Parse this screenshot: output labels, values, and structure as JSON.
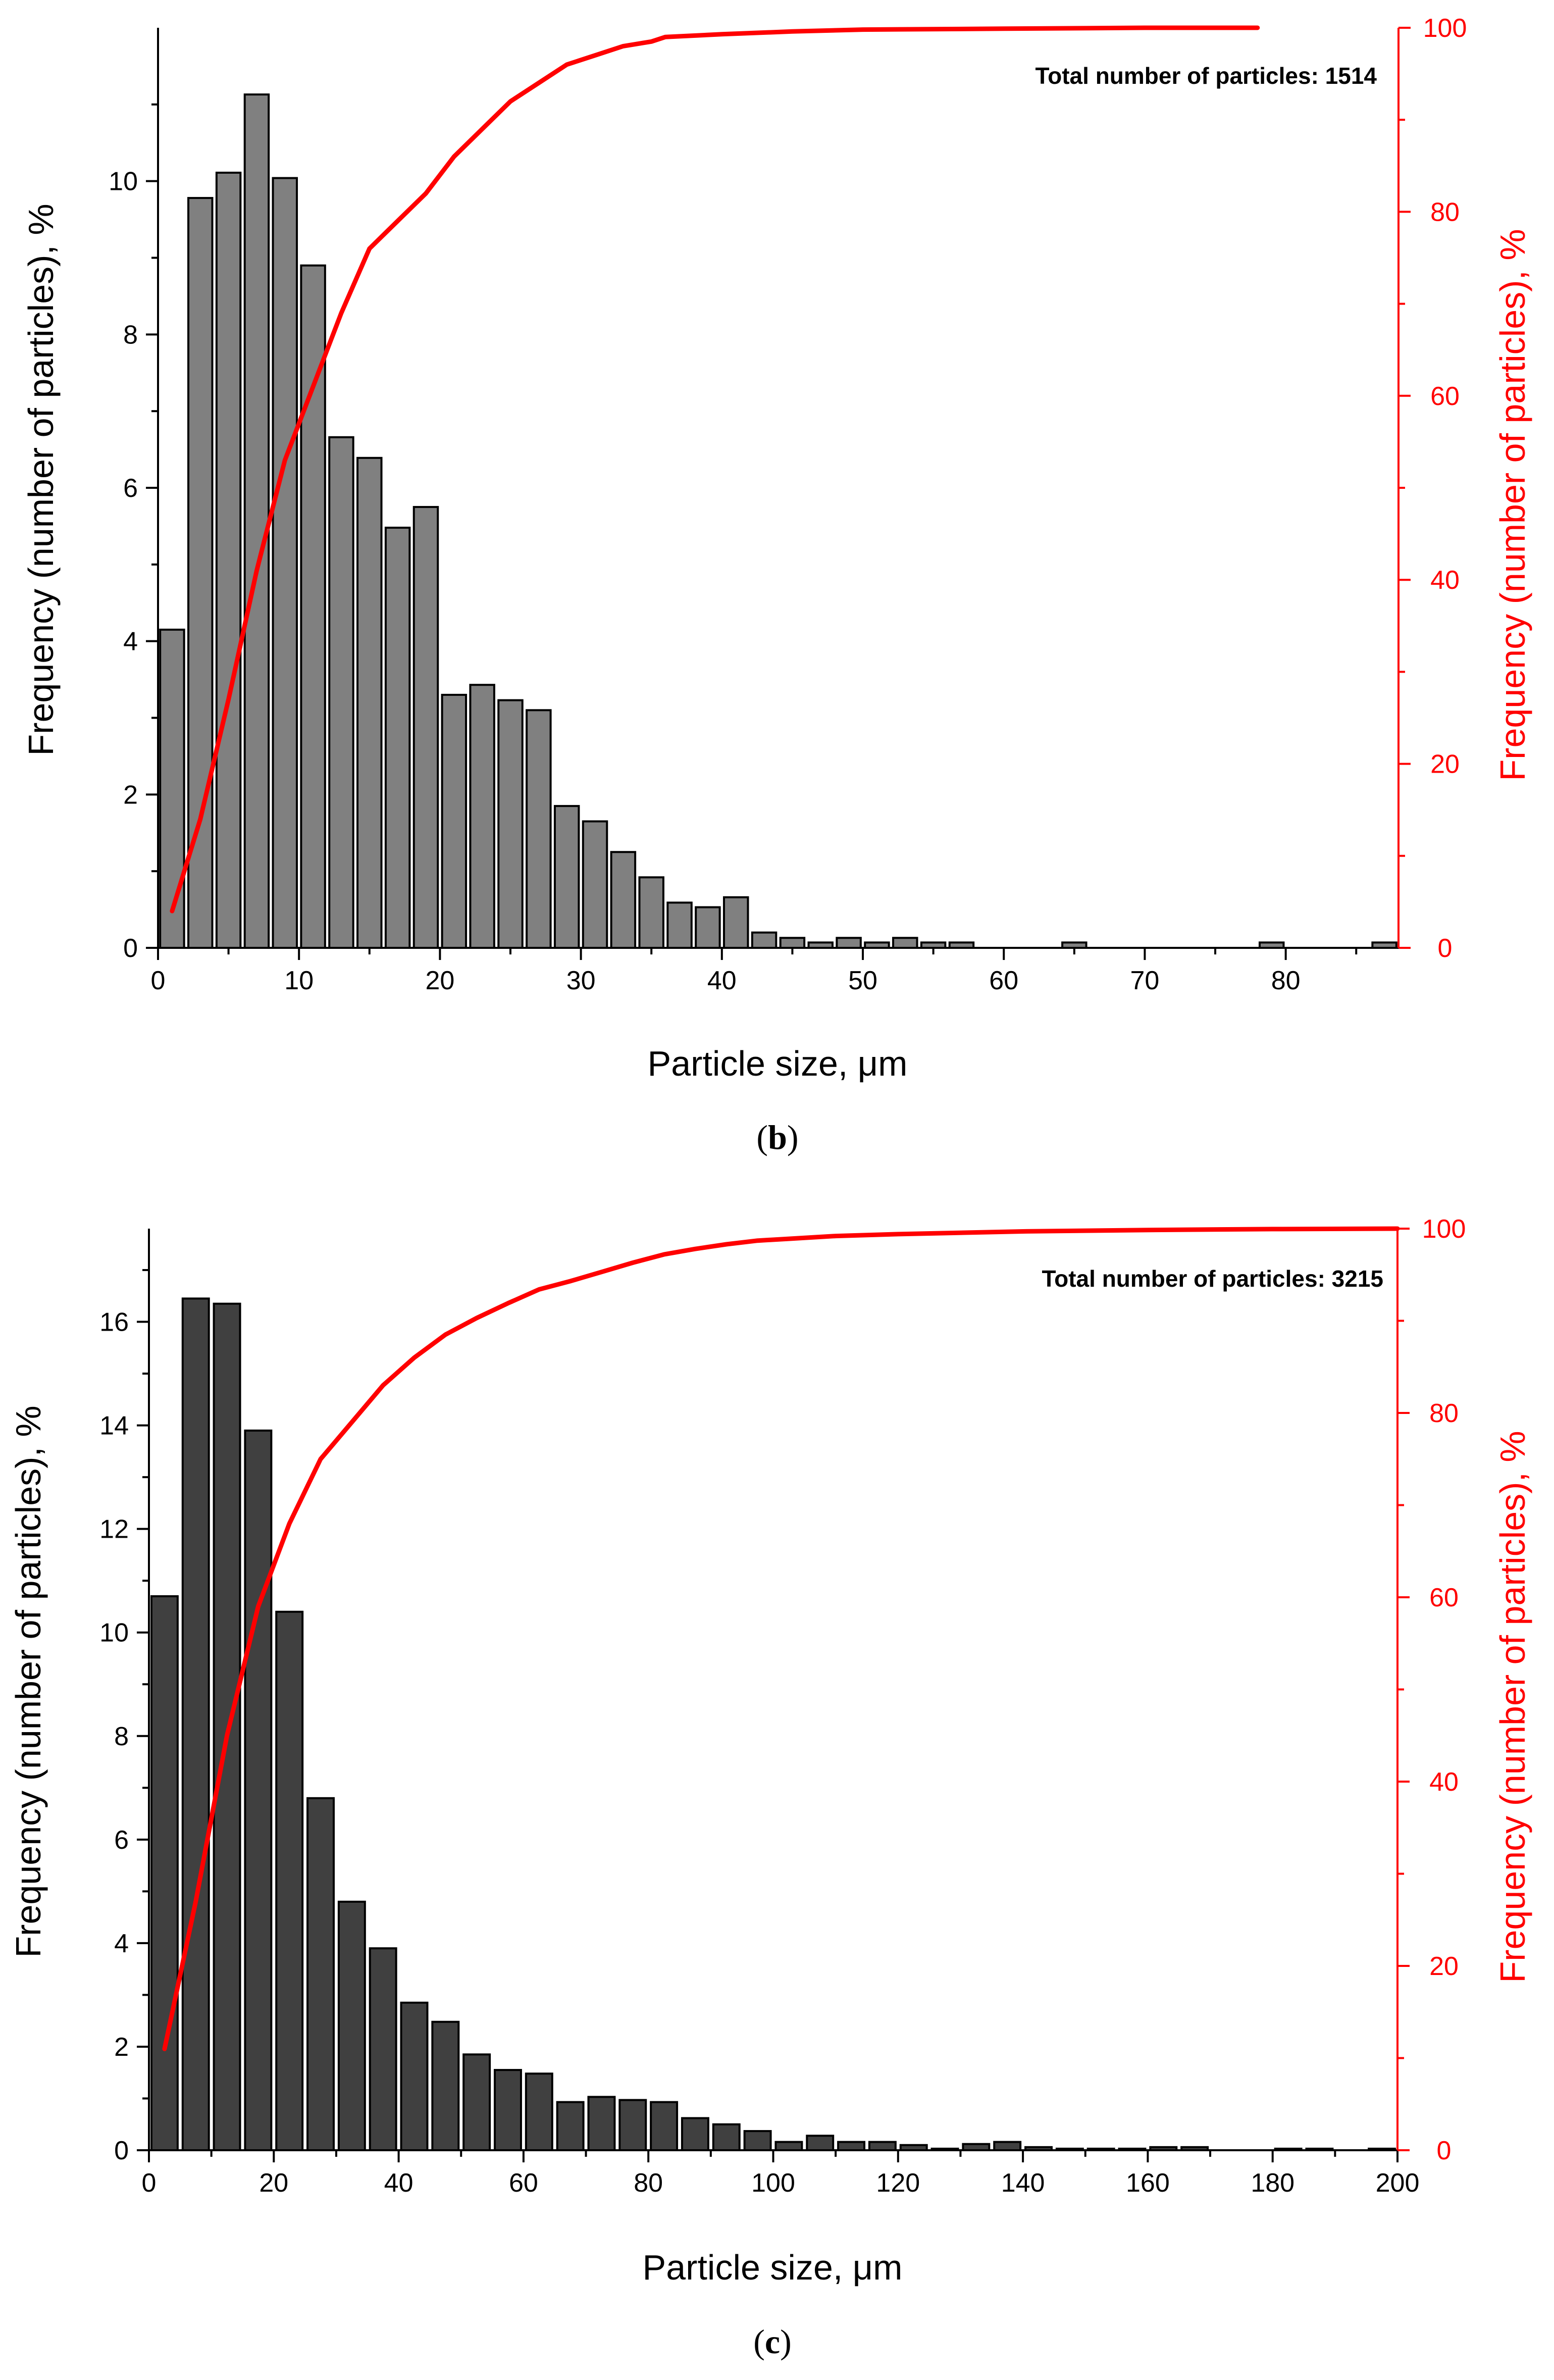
{
  "colors": {
    "cumulative": "#ff0000",
    "axis": "#000000",
    "bar_stroke": "#000000"
  },
  "chart_data": [
    {
      "type": "bar",
      "panel_label": "b",
      "annotation": "Total number of particles: 1514",
      "xlabel": "Particle size, μm",
      "ylabel": "Frequency (number of particles), %",
      "y2label": "Frequency (number of particles), %",
      "xlim": [
        0,
        88
      ],
      "ylim": [
        0,
        12
      ],
      "y2lim": [
        0,
        100
      ],
      "xticks": [
        0,
        10,
        20,
        30,
        40,
        50,
        60,
        70,
        80
      ],
      "yticks": [
        0,
        2,
        4,
        6,
        8,
        10
      ],
      "y2ticks": [
        0,
        20,
        40,
        60,
        80,
        100
      ],
      "bar_color": "#808080",
      "bar_width": 1.7,
      "series": [
        {
          "name": "Frequency",
          "axis": "left",
          "x": [
            1,
            3,
            5,
            7,
            9,
            11,
            13,
            15,
            17,
            19,
            21,
            23,
            25,
            27,
            29,
            31,
            33,
            35,
            37,
            39,
            41,
            43,
            45,
            47,
            49,
            51,
            53,
            55,
            57,
            59,
            61,
            63,
            65,
            67,
            69,
            71,
            73,
            75,
            77,
            79,
            81,
            83,
            85,
            87
          ],
          "values": [
            4.15,
            9.78,
            10.11,
            11.13,
            10.04,
            8.9,
            6.66,
            6.39,
            5.48,
            5.75,
            3.3,
            3.43,
            3.23,
            3.1,
            1.85,
            1.65,
            1.25,
            0.92,
            0.59,
            0.53,
            0.66,
            0.2,
            0.13,
            0.07,
            0.13,
            0.07,
            0.13,
            0.07,
            0.07,
            0.0,
            0.0,
            0.0,
            0.07,
            0.0,
            0.0,
            0.0,
            0.0,
            0.0,
            0.0,
            0.07,
            0.0,
            0.0,
            0.0,
            0.07
          ]
        },
        {
          "name": "Cumulative frequency",
          "axis": "right",
          "type": "line",
          "x": [
            1,
            3,
            5,
            7,
            9,
            11,
            13,
            15,
            17,
            19,
            21,
            23,
            25,
            27,
            29,
            31,
            33,
            35,
            36,
            40,
            45,
            50,
            60,
            70,
            78
          ],
          "values": [
            4,
            14,
            27,
            41,
            53,
            61,
            69,
            76,
            79,
            82,
            86,
            89,
            92,
            94,
            96,
            97,
            98,
            98.5,
            99,
            99.3,
            99.6,
            99.8,
            99.9,
            100,
            100
          ]
        }
      ]
    },
    {
      "type": "bar",
      "panel_label": "c",
      "annotation": "Total number of particles: 3215",
      "xlabel": "Particle size, μm",
      "ylabel": "Frequency (number of particles), %",
      "y2label": "Frequency (number of particles), %",
      "xlim": [
        0,
        200
      ],
      "ylim": [
        0,
        17.8
      ],
      "y2lim": [
        0,
        100
      ],
      "xticks": [
        0,
        20,
        40,
        60,
        80,
        100,
        120,
        140,
        160,
        180,
        200
      ],
      "yticks": [
        0,
        2,
        4,
        6,
        8,
        10,
        12,
        14,
        16
      ],
      "y2ticks": [
        0,
        20,
        40,
        60,
        80,
        100
      ],
      "bar_color": "#404040",
      "bar_width": 4.2,
      "series": [
        {
          "name": "Frequency",
          "axis": "left",
          "x": [
            2.5,
            7.5,
            12.5,
            17.5,
            22.5,
            27.5,
            32.5,
            37.5,
            42.5,
            47.5,
            52.5,
            57.5,
            62.5,
            67.5,
            72.5,
            77.5,
            82.5,
            87.5,
            92.5,
            97.5,
            102.5,
            107.5,
            112.5,
            117.5,
            122.5,
            127.5,
            132.5,
            137.5,
            142.5,
            147.5,
            152.5,
            157.5,
            162.5,
            167.5,
            172.5,
            177.5,
            182.5,
            187.5,
            192.5,
            197.5
          ],
          "values": [
            10.7,
            16.45,
            16.35,
            13.9,
            10.4,
            6.8,
            4.8,
            3.9,
            2.85,
            2.48,
            1.85,
            1.55,
            1.48,
            0.93,
            1.03,
            0.97,
            0.93,
            0.62,
            0.5,
            0.37,
            0.16,
            0.28,
            0.16,
            0.16,
            0.1,
            0.03,
            0.12,
            0.16,
            0.06,
            0.03,
            0.03,
            0.03,
            0.06,
            0.06,
            0.0,
            0.0,
            0.03,
            0.03,
            0.0,
            0.03
          ]
        },
        {
          "name": "Cumulative frequency",
          "axis": "right",
          "type": "line",
          "x": [
            2.5,
            7.5,
            12.5,
            17.5,
            22.5,
            27.5,
            32.5,
            37.5,
            42.5,
            47.5,
            52.5,
            57.5,
            62.5,
            67.5,
            72.5,
            77.5,
            82.5,
            87.5,
            92.5,
            97.5,
            102.5,
            110,
            120,
            140,
            160,
            180,
            200
          ],
          "values": [
            11,
            27,
            45,
            59,
            68,
            75,
            79,
            83,
            86,
            88.5,
            90.3,
            91.9,
            93.4,
            94.3,
            95.3,
            96.3,
            97.2,
            97.8,
            98.3,
            98.7,
            98.9,
            99.2,
            99.4,
            99.7,
            99.85,
            99.95,
            100
          ]
        }
      ]
    }
  ]
}
